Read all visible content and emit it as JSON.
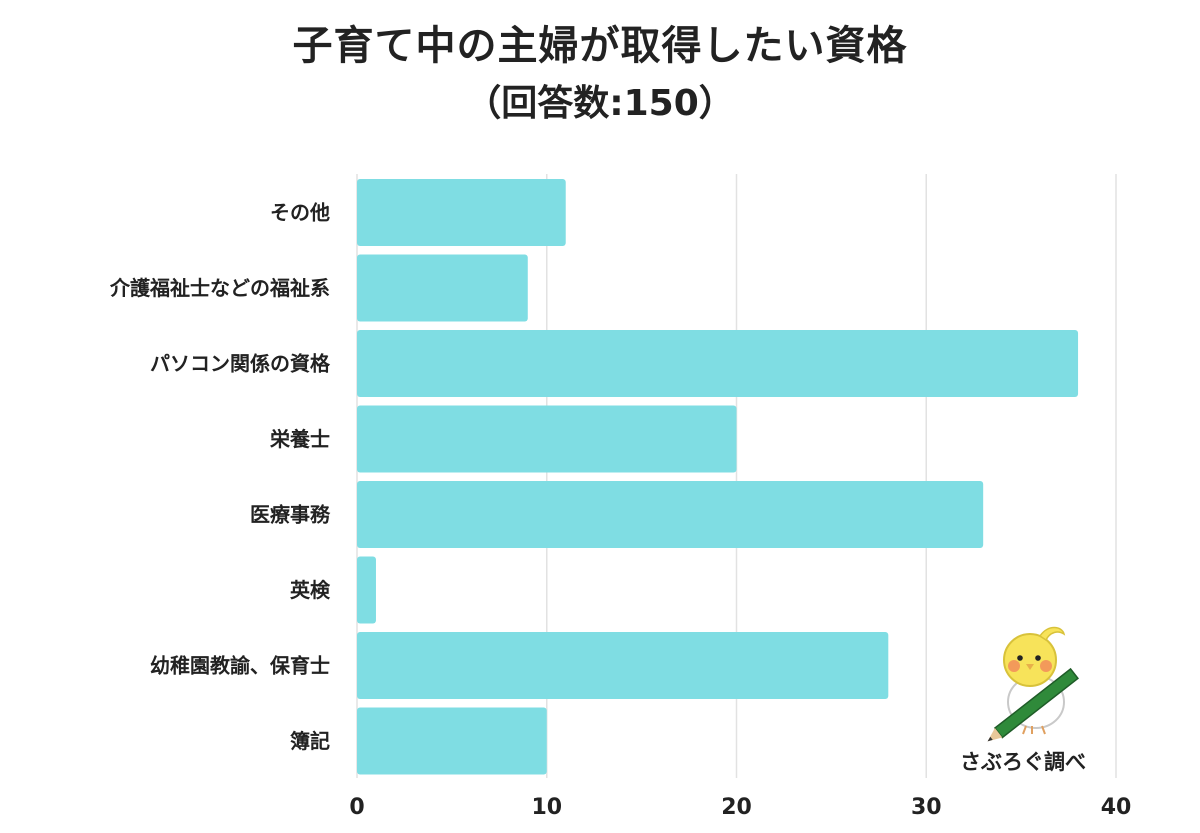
{
  "title": "子育て中の主婦が取得したい資格",
  "subtitle": "（回答数:150）",
  "brand": "さぶろぐ調べ",
  "colors": {
    "bar": "#7fdde3",
    "grid": "#e2e2e2",
    "text": "#222222"
  },
  "chart_data": {
    "type": "bar",
    "orientation": "horizontal",
    "categories": [
      "その他",
      "介護福祉士などの福祉系",
      "パソコン関係の資格",
      "栄養士",
      "医療事務",
      "英検",
      "幼稚園教諭、保育士",
      "簿記"
    ],
    "values": [
      11,
      9,
      38,
      20,
      33,
      1,
      28,
      10
    ],
    "xlim": [
      0,
      40
    ],
    "xticks": [
      0,
      10,
      20,
      30,
      40
    ],
    "grid": true,
    "legend": "none"
  }
}
